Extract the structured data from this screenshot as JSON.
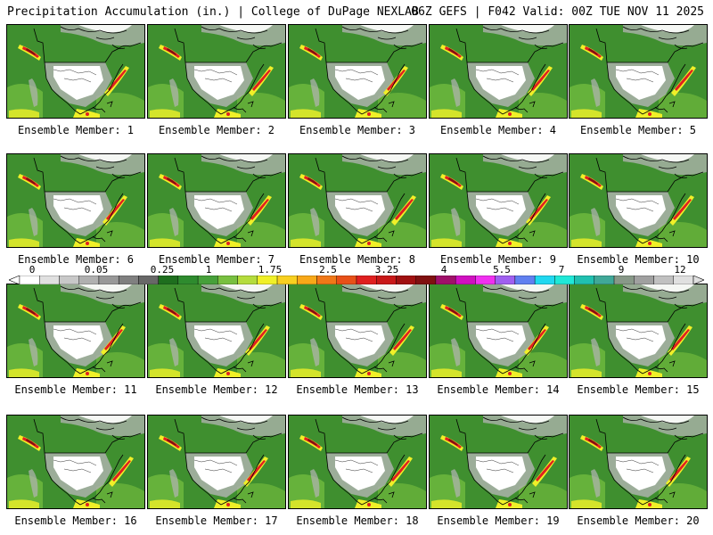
{
  "header": {
    "left": "Precipitation Accumulation (in.) | College of DuPage NEXLAB",
    "right": "06Z GEFS | F042 Valid: 00Z TUE NOV 11 2025"
  },
  "panel_label_prefix": "Ensemble Member: ",
  "members": [
    1,
    2,
    3,
    4,
    5,
    6,
    7,
    8,
    9,
    10,
    11,
    12,
    13,
    14,
    15,
    16,
    17,
    18,
    19,
    20
  ],
  "colorbar": {
    "tick_labels": [
      "0",
      "0.05",
      "0.25",
      "1",
      "1.75",
      "2.5",
      "3.25",
      "4",
      "5.5",
      "7",
      "9",
      "12"
    ],
    "colors": [
      "#ffffff",
      "#e0e0e0",
      "#c8c8c8",
      "#b0b0b0",
      "#989898",
      "#808080",
      "#686868",
      "#1e6e1e",
      "#2e8b2e",
      "#46a03a",
      "#78c040",
      "#b4dc3c",
      "#f0f028",
      "#f8d020",
      "#f8a818",
      "#f07818",
      "#e85018",
      "#e02020",
      "#c81818",
      "#a01010",
      "#801010",
      "#a0106a",
      "#d010c0",
      "#f030f0",
      "#a060f0",
      "#6080f0",
      "#20d8f0",
      "#20e8d8",
      "#20c0b0",
      "#40a898",
      "#889888",
      "#a0a0a0",
      "#c0c0c0",
      "#e0e0e0"
    ]
  },
  "colors": {
    "land_green": "#3f8f2f",
    "light_green": "#78c040",
    "yellow": "#f0f028",
    "red": "#e02020",
    "dark_red": "#801010",
    "gray": "#b4b4b4",
    "white": "#ffffff"
  }
}
